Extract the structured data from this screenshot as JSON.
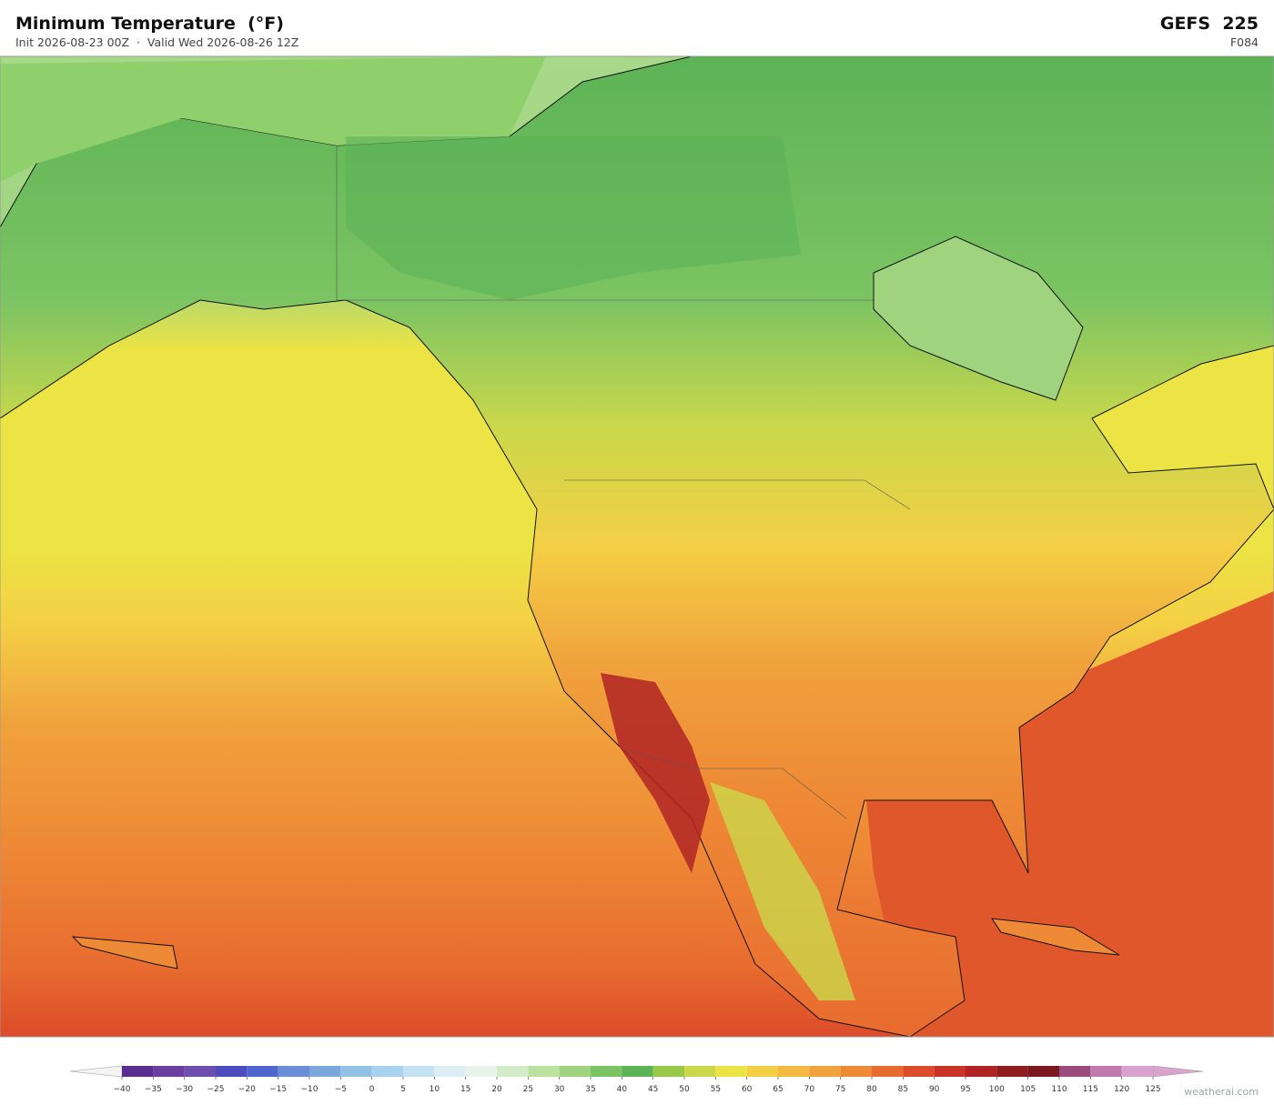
{
  "header": {
    "title": "Minimum Temperature  (°F)",
    "subtitle": "Init 2026-08-23 00Z  ·  Valid Wed 2026-08-26 12Z",
    "model": "GEFS  225",
    "forecast_hour": "F084"
  },
  "colorbar": {
    "ticks": [
      {
        "value": -40,
        "label": "−40"
      },
      {
        "value": -35,
        "label": "−35"
      },
      {
        "value": -30,
        "label": "−30"
      },
      {
        "value": -25,
        "label": "−25"
      },
      {
        "value": -20,
        "label": "−20"
      },
      {
        "value": -15,
        "label": "−15"
      },
      {
        "value": -10,
        "label": "−10"
      },
      {
        "value": -5,
        "label": "−5"
      },
      0,
      5,
      10,
      15,
      20,
      25,
      30,
      35,
      40,
      45,
      50,
      55,
      60,
      65,
      70,
      75,
      80,
      85,
      90,
      95,
      100,
      105,
      110,
      115,
      120,
      125
    ],
    "colors": [
      "#5a2d91",
      "#6a3fa0",
      "#6d4fb0",
      "#4c4cbf",
      "#4f66cc",
      "#6a8fd6",
      "#7aa7dc",
      "#93c1e6",
      "#a8d2ee",
      "#c4e2f2",
      "#dcedf4",
      "#e8f4ea",
      "#d3ecc8",
      "#bce29f",
      "#9fd37e",
      "#7cc463",
      "#5cb356",
      "#98c84a",
      "#cbd84a",
      "#ece444",
      "#f4cf45",
      "#f4b941",
      "#f0a23d",
      "#ee8a36",
      "#e86b2f",
      "#dc4b2a",
      "#c83427",
      "#b02424",
      "#8f1c1f",
      "#7a1a1f",
      "#9a4a7c",
      "#c07aae",
      "#d9a3cf"
    ],
    "under_color": "#f4f4f4",
    "over_color": "#d9a3cf"
  },
  "watermark": "weatherai.com"
}
